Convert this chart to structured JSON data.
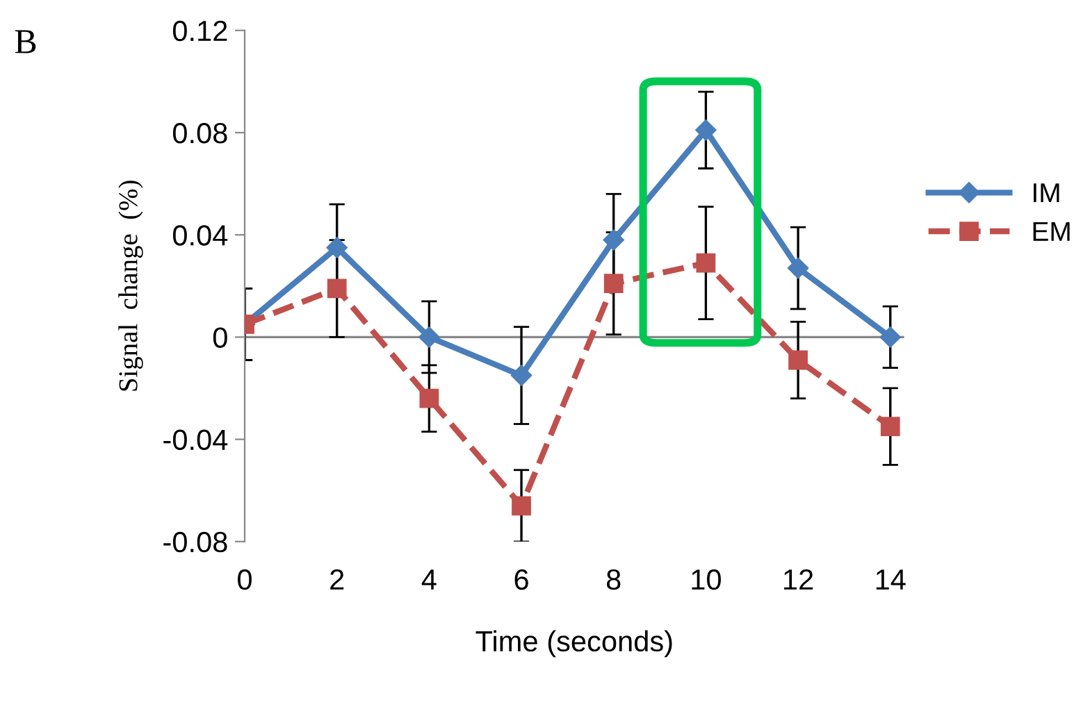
{
  "chart_data": {
    "type": "line",
    "xlabel": "Time (seconds)",
    "ylabel": "Signal  change  (%)",
    "annotations": [
      "B"
    ],
    "x": [
      0,
      2,
      4,
      6,
      8,
      10,
      12,
      14
    ],
    "xlim": [
      0,
      14.3
    ],
    "xticks": [
      0,
      2,
      4,
      6,
      8,
      10,
      12,
      14
    ],
    "ylim": [
      -0.08,
      0.12
    ],
    "yticks": [
      {
        "value": -0.08,
        "label": "-0.08"
      },
      {
        "value": -0.04,
        "label": "-0.04"
      },
      0,
      0.04,
      0.08,
      0.12
    ],
    "grid": false,
    "legend": "right",
    "ref_lines": [
      {
        "axis": "y",
        "value": 0,
        "color": "#888888"
      }
    ],
    "series": [
      {
        "name": "IM",
        "color": "#4a7ebb",
        "marker": "diamond",
        "line_style": "solid",
        "values": [
          0.005,
          0.035,
          0,
          -0.015,
          0.038,
          0.081,
          0.027,
          0
        ],
        "errors": [
          0.014,
          0.017,
          0.014,
          0.019,
          0.018,
          0.015,
          0.016,
          0.012
        ]
      },
      {
        "name": "EM",
        "color": "#c0504d",
        "marker": "square",
        "line_style": "dashed",
        "values": [
          0.005,
          0.019,
          -0.024,
          -0.066,
          0.021,
          0.029,
          -0.009,
          -0.035
        ],
        "errors": [
          0.014,
          0.019,
          0.013,
          0.014,
          0.02,
          0.022,
          0.015,
          0.015
        ]
      }
    ]
  }
}
